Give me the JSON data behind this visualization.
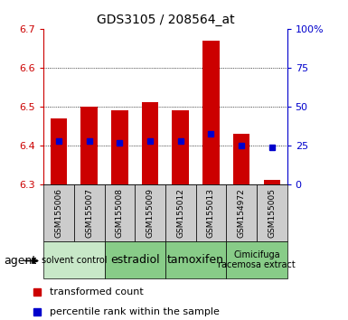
{
  "title": "GDS3105 / 208564_at",
  "samples": [
    "GSM155006",
    "GSM155007",
    "GSM155008",
    "GSM155009",
    "GSM155012",
    "GSM155013",
    "GSM154972",
    "GSM155005"
  ],
  "bar_tops": [
    6.47,
    6.5,
    6.49,
    6.51,
    6.49,
    6.67,
    6.43,
    6.31
  ],
  "bar_bottom": 6.3,
  "blue_values": [
    6.41,
    6.41,
    6.405,
    6.41,
    6.41,
    6.43,
    6.4,
    6.395
  ],
  "ylim": [
    6.3,
    6.7
  ],
  "y2lim": [
    0,
    100
  ],
  "yticks": [
    6.3,
    6.4,
    6.5,
    6.6,
    6.7
  ],
  "y2ticks": [
    0,
    25,
    50,
    75,
    100
  ],
  "y2ticklabels": [
    "0",
    "25",
    "50",
    "75",
    "100%"
  ],
  "bar_color": "#cc0000",
  "blue_color": "#0000cc",
  "agent_groups": [
    {
      "label": "solvent control",
      "start": 0,
      "end": 2,
      "color": "#c8e8c8",
      "fontsize": 7
    },
    {
      "label": "estradiol",
      "start": 2,
      "end": 4,
      "color": "#88cc88",
      "fontsize": 9
    },
    {
      "label": "tamoxifen",
      "start": 4,
      "end": 6,
      "color": "#88cc88",
      "fontsize": 9
    },
    {
      "label": "Cimicifuga\nracemosa extract",
      "start": 6,
      "end": 8,
      "color": "#88cc88",
      "fontsize": 7
    }
  ],
  "sample_bg_color": "#cccccc",
  "bar_width": 0.55,
  "grid_yticks": [
    6.4,
    6.5,
    6.6
  ]
}
